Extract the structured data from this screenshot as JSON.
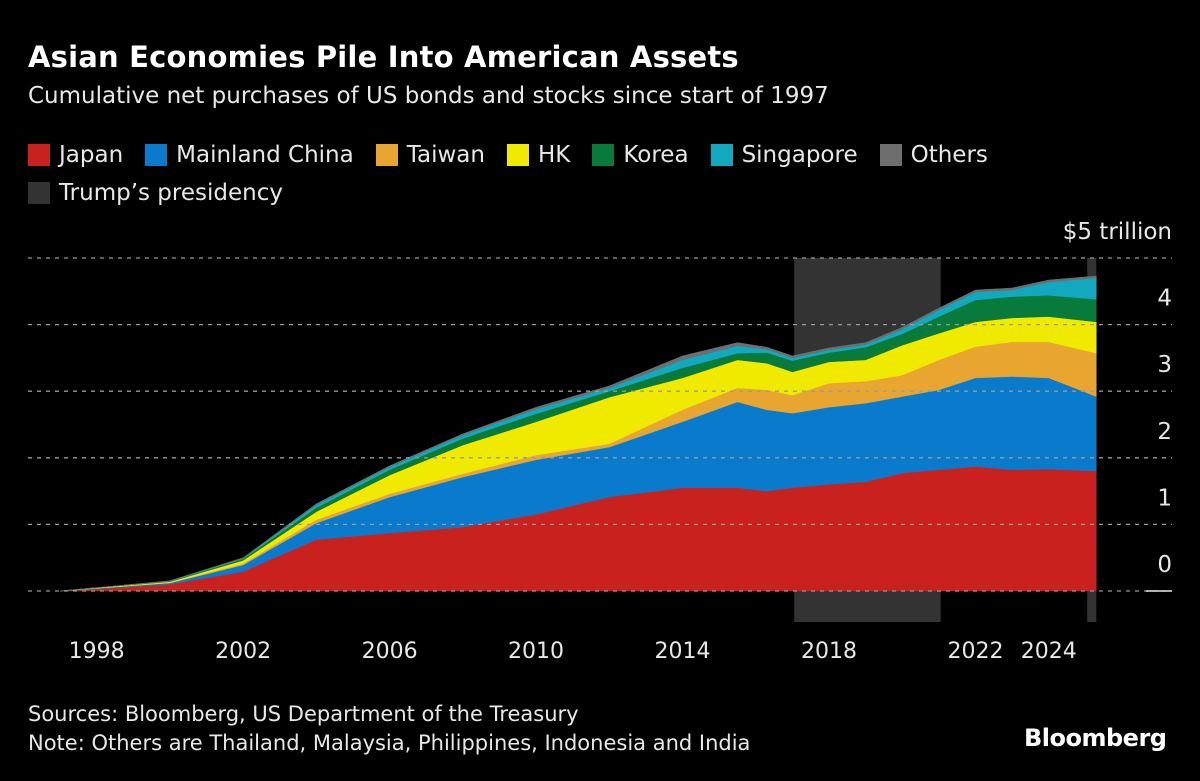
{
  "title": "Asian Economies Pile Into American Assets",
  "subtitle": "Cumulative net purchases of US bonds and stocks since start of 1997",
  "footer": {
    "sources": "Sources: Bloomberg, US Department of the Treasury",
    "note": "Note: Others are Thailand, Malaysia, Philippines, Indonesia and India",
    "logo": "Bloomberg"
  },
  "legend": [
    {
      "label": "Japan",
      "color": "#c9211e"
    },
    {
      "label": "Mainland China",
      "color": "#0a7bcc"
    },
    {
      "label": "Taiwan",
      "color": "#e8a530"
    },
    {
      "label": "HK",
      "color": "#f0ea00"
    },
    {
      "label": "Korea",
      "color": "#077a3c"
    },
    {
      "label": "Singapore",
      "color": "#12a9c0"
    },
    {
      "label": "Others",
      "color": "#6e6e6e"
    },
    {
      "label": "Trump’s presidency",
      "color": "#333333"
    }
  ],
  "chart_data": {
    "type": "area",
    "stacked": true,
    "title": "Asian Economies Pile Into American Assets",
    "subtitle": "Cumulative net purchases of US bonds and stocks since start of 1997",
    "y_unit_label": "$5 trillion",
    "ylim": [
      0,
      5
    ],
    "y_ticks": [
      "0",
      "1",
      "2",
      "3",
      "4"
    ],
    "x_ticks": [
      "1998",
      "2002",
      "2006",
      "2010",
      "2014",
      "2018",
      "2022",
      "2024"
    ],
    "xlim": [
      1997,
      2025.3
    ],
    "grid": true,
    "legend_position": "top-left",
    "x": [
      1997,
      1998,
      2000,
      2002,
      2004,
      2006,
      2008,
      2010,
      2012,
      2014,
      2015.5,
      2016.3,
      2017,
      2018,
      2019,
      2020,
      2021,
      2022,
      2023,
      2024,
      2025.3
    ],
    "series": [
      {
        "name": "Japan",
        "color": "#c9211e",
        "values": [
          0,
          0.03,
          0.1,
          0.29,
          0.77,
          0.87,
          0.96,
          1.15,
          1.41,
          1.55,
          1.55,
          1.5,
          1.55,
          1.6,
          1.64,
          1.77,
          1.82,
          1.87,
          1.82,
          1.83,
          1.8
        ]
      },
      {
        "name": "Mainland China",
        "color": "#0a7bcc",
        "values": [
          0,
          0.01,
          0.02,
          0.1,
          0.25,
          0.54,
          0.75,
          0.82,
          0.75,
          0.99,
          1.29,
          1.22,
          1.12,
          1.16,
          1.18,
          1.15,
          1.2,
          1.33,
          1.4,
          1.37,
          1.12
        ]
      },
      {
        "name": "Taiwan",
        "color": "#e8a530",
        "values": [
          0,
          0,
          0.005,
          0.02,
          0.05,
          0.05,
          0.05,
          0.07,
          0.05,
          0.18,
          0.21,
          0.3,
          0.27,
          0.36,
          0.33,
          0.32,
          0.45,
          0.47,
          0.52,
          0.54,
          0.65
        ]
      },
      {
        "name": "HK",
        "color": "#f0ea00",
        "values": [
          0,
          0.01,
          0.015,
          0.05,
          0.12,
          0.28,
          0.43,
          0.5,
          0.7,
          0.48,
          0.42,
          0.4,
          0.35,
          0.32,
          0.32,
          0.45,
          0.4,
          0.37,
          0.36,
          0.38,
          0.47
        ]
      },
      {
        "name": "Korea",
        "color": "#077a3c",
        "values": [
          0,
          0,
          0.005,
          0.02,
          0.06,
          0.08,
          0.1,
          0.12,
          0.09,
          0.15,
          0.1,
          0.16,
          0.17,
          0.14,
          0.19,
          0.17,
          0.25,
          0.33,
          0.32,
          0.32,
          0.34
        ]
      },
      {
        "name": "Singapore",
        "color": "#12a9c0",
        "values": [
          0,
          0,
          0.005,
          0.01,
          0.04,
          0.04,
          0.05,
          0.07,
          0.05,
          0.12,
          0.11,
          0.05,
          0.04,
          0.04,
          0.04,
          0.07,
          0.1,
          0.12,
          0.1,
          0.2,
          0.32
        ]
      },
      {
        "name": "Others",
        "color": "#6e6e6e",
        "values": [
          0,
          0,
          0.005,
          0.01,
          0.02,
          0.02,
          0.02,
          0.03,
          0.03,
          0.06,
          0.05,
          0.03,
          0.03,
          0.03,
          0.03,
          0.03,
          0.03,
          0.03,
          0.03,
          0.03,
          0.03
        ]
      }
    ],
    "shaded_periods": [
      {
        "name": "Trump’s presidency",
        "start": 2017.05,
        "end": 2021.05,
        "color": "#333333"
      },
      {
        "name": "Trump’s presidency",
        "start": 2025.05,
        "end": 2025.3,
        "color": "#333333"
      }
    ]
  }
}
